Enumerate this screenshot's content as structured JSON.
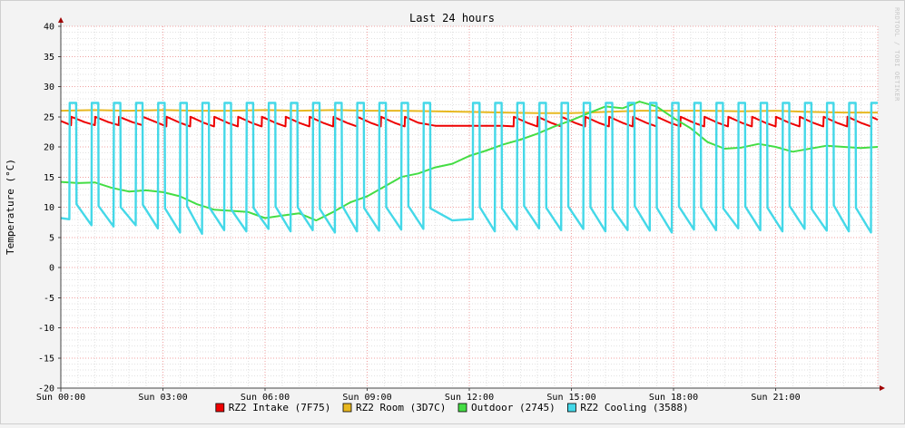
{
  "chart_data": {
    "type": "line",
    "title": "Last 24 hours",
    "ylabel": "Temperature (°C)",
    "watermark": "RRDTOOL / TOBI OETIKER",
    "ylim": [
      -20,
      40
    ],
    "yticks": [
      40,
      35,
      30,
      25,
      20,
      15,
      10,
      5,
      0,
      -5,
      -10,
      -15,
      -20
    ],
    "xlim": [
      0,
      24
    ],
    "xticks": [
      {
        "hour": 0,
        "label": "Sun 00:00"
      },
      {
        "hour": 3,
        "label": "Sun 03:00"
      },
      {
        "hour": 6,
        "label": "Sun 06:00"
      },
      {
        "hour": 9,
        "label": "Sun 09:00"
      },
      {
        "hour": 12,
        "label": "Sun 12:00"
      },
      {
        "hour": 15,
        "label": "Sun 15:00"
      },
      {
        "hour": 18,
        "label": "Sun 18:00"
      },
      {
        "hour": 21,
        "label": "Sun 21:00"
      }
    ],
    "grid": true,
    "legend_position": "bottom",
    "series": [
      {
        "name": "RZ2 Intake (7F75)",
        "color": "#ee0000",
        "x": [
          0,
          0.3,
          0.31,
          0.7,
          1.0,
          1.01,
          1.4,
          1.7,
          1.71,
          2.1,
          2.4,
          2.41,
          2.8,
          3.1,
          3.11,
          3.5,
          3.8,
          3.81,
          4.2,
          4.5,
          4.51,
          4.9,
          5.2,
          5.21,
          5.6,
          5.9,
          5.91,
          6.3,
          6.6,
          6.61,
          7.0,
          7.3,
          7.31,
          7.7,
          8.0,
          8.01,
          8.4,
          8.7,
          8.71,
          9.1,
          9.4,
          9.41,
          9.8,
          10.1,
          10.11,
          10.5,
          11.0,
          12.0,
          12.5,
          13.0,
          13.3,
          13.31,
          13.7,
          14.0,
          14.01,
          14.4,
          14.7,
          14.71,
          15.1,
          15.4,
          15.41,
          15.8,
          16.1,
          16.11,
          16.5,
          16.8,
          16.81,
          17.2,
          17.5,
          17.51,
          17.9,
          18.2,
          18.21,
          18.6,
          18.9,
          18.91,
          19.3,
          19.6,
          19.61,
          20.0,
          20.3,
          20.31,
          20.7,
          21.0,
          21.01,
          21.4,
          21.7,
          21.71,
          22.1,
          22.4,
          22.41,
          22.8,
          23.1,
          23.11,
          23.5,
          23.8,
          23.81,
          24.0
        ],
        "values": [
          24.3,
          23.6,
          25.0,
          24.1,
          23.6,
          25.0,
          24.1,
          23.6,
          25.0,
          24.1,
          23.6,
          25.0,
          24.1,
          23.4,
          25.0,
          24.0,
          23.4,
          25.0,
          24.0,
          23.4,
          25.0,
          24.0,
          23.4,
          25.0,
          24.0,
          23.4,
          25.0,
          24.0,
          23.4,
          25.0,
          24.0,
          23.4,
          25.0,
          24.0,
          23.4,
          25.0,
          24.0,
          23.4,
          25.0,
          24.0,
          23.4,
          25.0,
          24.0,
          23.4,
          25.0,
          24.0,
          23.5,
          23.5,
          23.5,
          23.5,
          23.4,
          25.0,
          24.0,
          23.4,
          25.0,
          24.0,
          23.4,
          25.0,
          24.0,
          23.4,
          25.0,
          24.0,
          23.4,
          25.0,
          24.0,
          23.4,
          25.0,
          24.0,
          23.4,
          25.0,
          24.0,
          23.4,
          25.0,
          24.0,
          23.4,
          25.0,
          24.0,
          23.4,
          25.0,
          24.0,
          23.4,
          25.0,
          24.0,
          23.4,
          25.0,
          24.0,
          23.4,
          25.0,
          24.0,
          23.4,
          25.0,
          24.0,
          23.4,
          25.0,
          24.0,
          23.4,
          25.0,
          24.5
        ]
      },
      {
        "name": "RZ2 Room (3D7C)",
        "color": "#e8b820",
        "x": [
          0,
          1,
          2,
          3,
          4,
          5,
          6,
          7,
          8,
          9,
          10,
          11,
          12,
          13,
          14,
          15,
          16,
          17,
          18,
          19,
          20,
          21,
          22,
          23,
          24
        ],
        "values": [
          26.0,
          26.1,
          26.0,
          26.1,
          26.0,
          26.0,
          26.1,
          26.0,
          26.1,
          26.0,
          26.0,
          25.9,
          25.8,
          25.7,
          25.6,
          25.6,
          25.8,
          26.0,
          26.0,
          26.0,
          25.9,
          26.0,
          25.8,
          25.7,
          25.7
        ]
      },
      {
        "name": "Outdoor (2745)",
        "color": "#44dd44",
        "x": [
          0,
          0.5,
          1.0,
          1.5,
          2.0,
          2.5,
          3.0,
          3.5,
          4.0,
          4.5,
          5.0,
          5.5,
          6.0,
          6.5,
          7.0,
          7.5,
          8.0,
          8.5,
          9.0,
          9.5,
          10.0,
          10.5,
          11.0,
          11.5,
          12.0,
          12.5,
          13.0,
          13.5,
          14.0,
          14.5,
          15.0,
          15.5,
          16.0,
          16.5,
          17.0,
          17.5,
          18.0,
          18.5,
          19.0,
          19.5,
          20.0,
          20.5,
          21.0,
          21.5,
          22.0,
          22.5,
          23.0,
          23.5,
          24.0
        ],
        "values": [
          14.2,
          14.0,
          14.1,
          13.2,
          12.6,
          12.8,
          12.5,
          11.8,
          10.5,
          9.6,
          9.4,
          9.2,
          8.2,
          8.6,
          9.0,
          7.8,
          9.2,
          10.8,
          11.8,
          13.4,
          15.0,
          15.6,
          16.6,
          17.2,
          18.5,
          19.4,
          20.4,
          21.2,
          22.2,
          23.4,
          24.4,
          25.6,
          26.7,
          26.4,
          27.5,
          26.7,
          24.8,
          23.1,
          20.8,
          19.7,
          19.9,
          20.5,
          20.0,
          19.2,
          19.7,
          20.2,
          20.0,
          19.8,
          20.0
        ]
      },
      {
        "name": "RZ2 Cooling (3588)",
        "color": "#44d8e8",
        "x": [
          0,
          0.25,
          0.26,
          0.45,
          0.46,
          0.9,
          0.91,
          1.1,
          1.11,
          1.55,
          1.56,
          1.75,
          1.76,
          2.2,
          2.21,
          2.4,
          2.41,
          2.85,
          2.86,
          3.05,
          3.06,
          3.5,
          3.51,
          3.7,
          3.71,
          4.15,
          4.16,
          4.35,
          4.36,
          4.8,
          4.81,
          5.0,
          5.01,
          5.45,
          5.46,
          5.65,
          5.66,
          6.1,
          6.11,
          6.3,
          6.31,
          6.75,
          6.76,
          6.95,
          6.96,
          7.4,
          7.41,
          7.6,
          7.61,
          8.05,
          8.06,
          8.25,
          8.26,
          8.7,
          8.71,
          8.9,
          8.91,
          9.35,
          9.36,
          9.55,
          9.56,
          10.0,
          10.01,
          10.2,
          10.21,
          10.65,
          10.66,
          10.85,
          10.86,
          11.5,
          12.0,
          12.1,
          12.11,
          12.3,
          12.31,
          12.75,
          12.76,
          12.95,
          12.96,
          13.4,
          13.41,
          13.6,
          13.61,
          14.05,
          14.06,
          14.25,
          14.26,
          14.7,
          14.71,
          14.9,
          14.91,
          15.35,
          15.36,
          15.55,
          15.56,
          16.0,
          16.01,
          16.2,
          16.21,
          16.65,
          16.66,
          16.85,
          16.86,
          17.3,
          17.31,
          17.5,
          17.51,
          17.95,
          17.96,
          18.15,
          18.16,
          18.6,
          18.61,
          18.8,
          18.81,
          19.25,
          19.26,
          19.45,
          19.46,
          19.9,
          19.91,
          20.1,
          20.11,
          20.55,
          20.56,
          20.75,
          20.76,
          21.2,
          21.21,
          21.4,
          21.41,
          21.85,
          21.86,
          22.05,
          22.06,
          22.5,
          22.51,
          22.7,
          22.71,
          23.15,
          23.16,
          23.35,
          23.36,
          23.8,
          23.81,
          24.0
        ],
        "values": [
          8.2,
          8.0,
          27.3,
          27.3,
          10.5,
          7.0,
          27.3,
          27.3,
          10.2,
          6.8,
          27.3,
          27.3,
          10.0,
          7.0,
          27.3,
          27.3,
          10.4,
          6.5,
          27.3,
          27.3,
          9.8,
          5.8,
          27.3,
          27.3,
          10.2,
          5.6,
          27.3,
          27.3,
          10.0,
          6.2,
          27.3,
          27.3,
          9.6,
          6.0,
          27.3,
          27.3,
          9.9,
          6.4,
          27.3,
          27.3,
          10.1,
          6.0,
          27.3,
          27.3,
          10.0,
          6.2,
          27.3,
          27.3,
          9.7,
          5.8,
          27.3,
          27.3,
          10.3,
          6.0,
          27.3,
          27.3,
          9.9,
          6.1,
          27.3,
          27.3,
          10.0,
          6.3,
          27.3,
          27.3,
          10.2,
          6.4,
          27.3,
          27.3,
          9.8,
          7.8,
          8.0,
          8.0,
          27.3,
          27.3,
          10.0,
          6.0,
          27.3,
          27.3,
          9.8,
          6.3,
          27.3,
          27.3,
          10.2,
          6.5,
          27.3,
          27.3,
          9.9,
          6.2,
          27.3,
          27.3,
          10.1,
          6.4,
          27.3,
          27.3,
          10.0,
          6.0,
          27.3,
          27.3,
          9.7,
          6.2,
          27.3,
          27.3,
          10.2,
          6.1,
          27.3,
          27.3,
          9.9,
          5.8,
          27.3,
          27.3,
          10.1,
          6.3,
          27.3,
          27.3,
          10.0,
          6.2,
          27.3,
          27.3,
          9.8,
          6.5,
          27.3,
          27.3,
          10.1,
          6.2,
          27.3,
          27.3,
          9.9,
          6.0,
          27.3,
          27.3,
          10.2,
          6.4,
          27.3,
          27.3,
          9.7,
          6.1,
          27.3,
          27.3,
          10.3,
          6.0,
          27.3,
          27.3,
          9.9,
          5.8,
          27.3,
          27.3
        ]
      }
    ]
  }
}
